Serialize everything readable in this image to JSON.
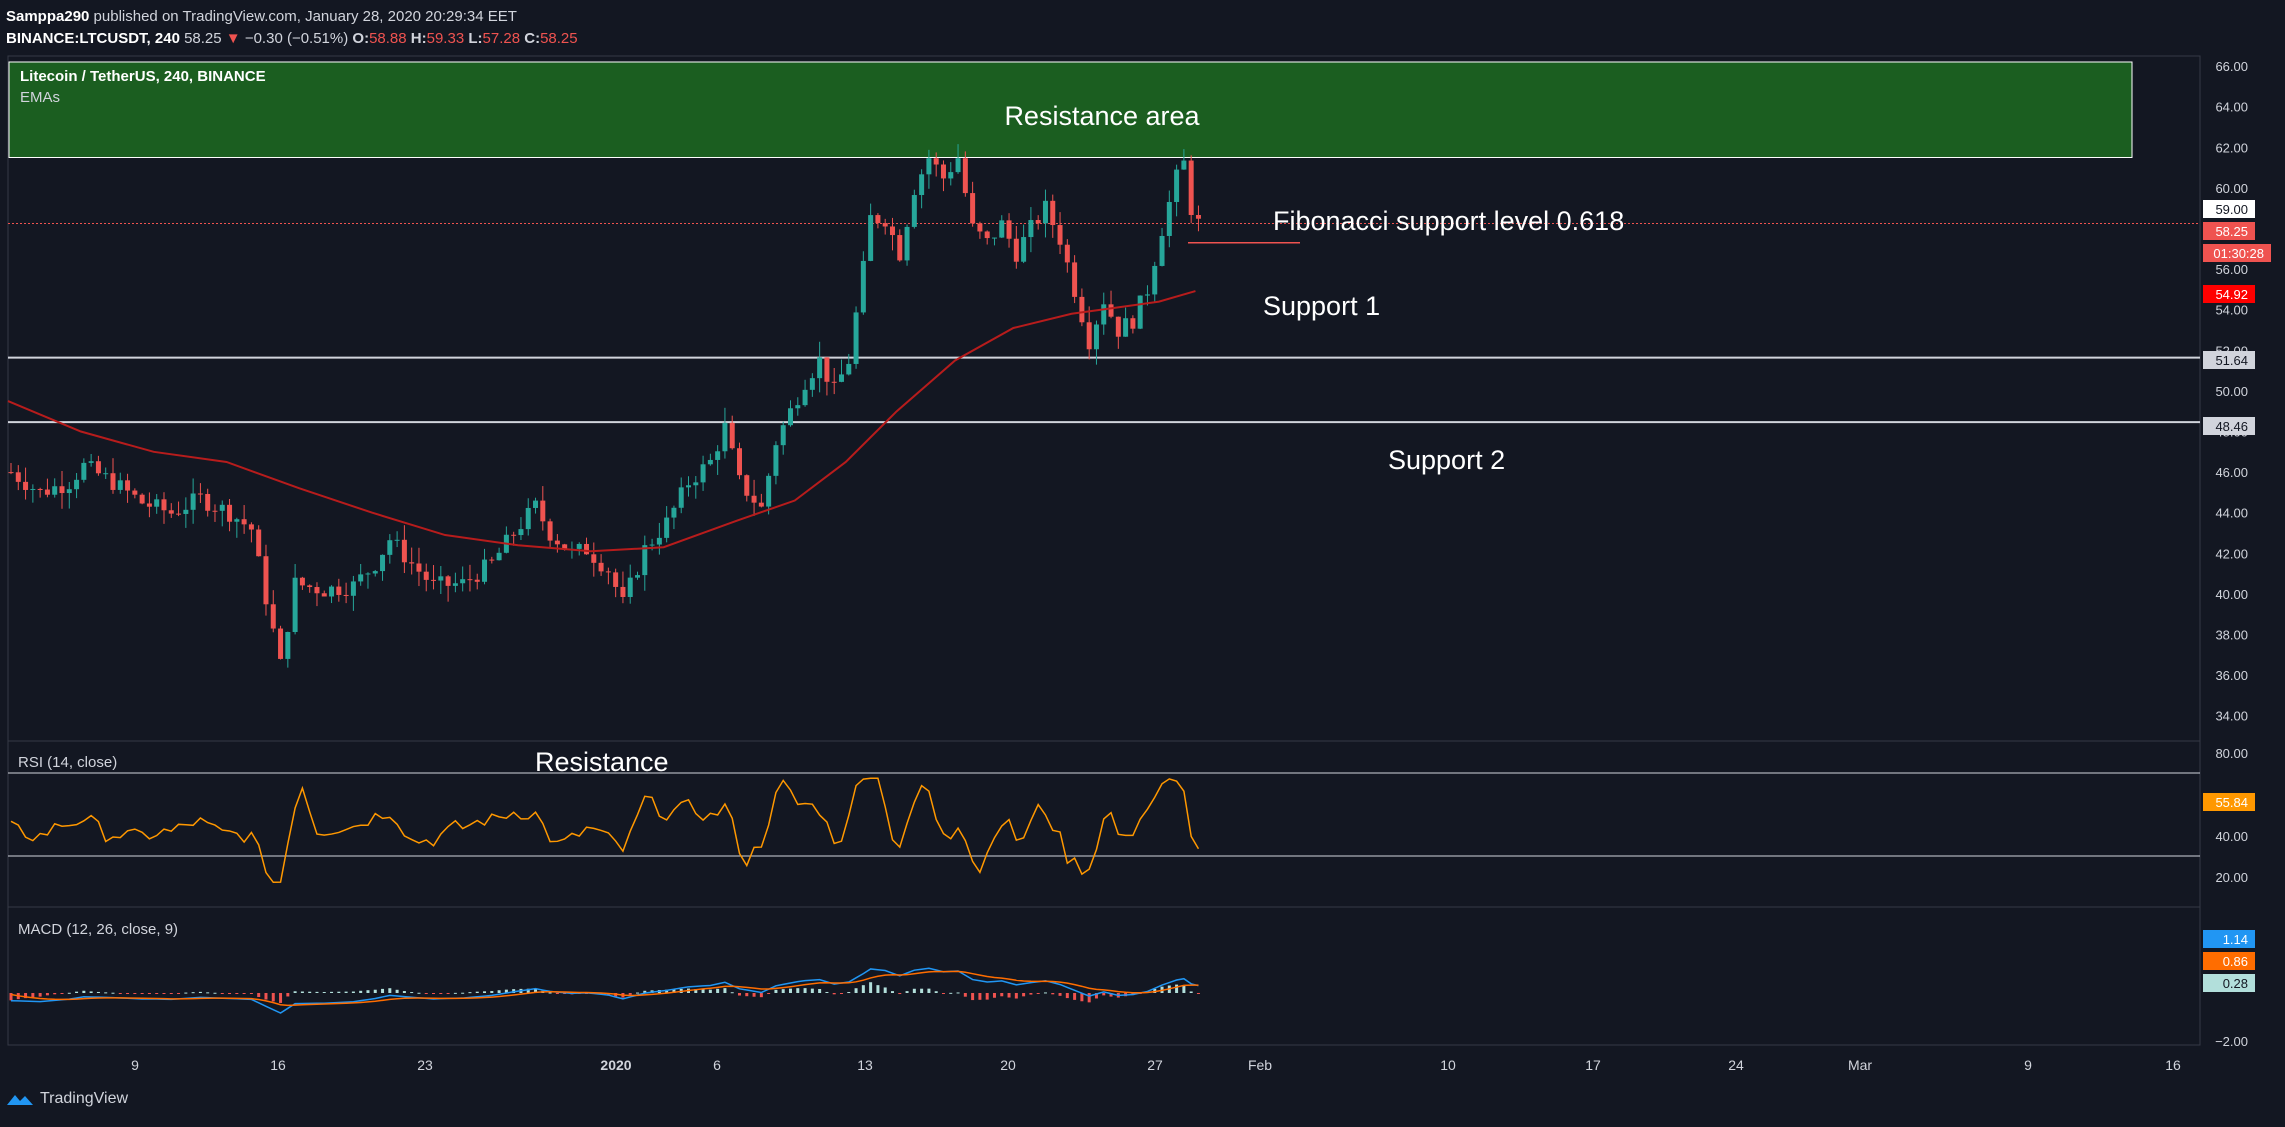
{
  "header": {
    "publisher": "Samppa290",
    "publisher_suffix": " published on TradingView.com, January 28, 2020 20:29:34 EET",
    "symbol": "BINANCE:LTCUSDT, 240",
    "last": "58.25",
    "change": "−0.30 (−0.51%)",
    "open_label": "O:",
    "open": "58.88",
    "high_label": "H:",
    "high": "59.33",
    "low_label": "L:",
    "low": "57.28",
    "close_label": "C:",
    "close": "58.25"
  },
  "legend": {
    "title": "Litecoin / TetherUS, 240, BINANCE",
    "emas": "EMAs"
  },
  "annotations": {
    "resistance_area": "Resistance area",
    "fib": "Fibonacci support level 0.618",
    "support1": "Support 1",
    "support2": "Support 2",
    "rsi_resistance": "Resistance"
  },
  "price_badges": {
    "current": "59.00",
    "last": "58.25",
    "timer": "01:30:28",
    "ema": "54.92",
    "s1": "51.64",
    "s2": "48.46"
  },
  "rsi": {
    "label": "RSI (14, close)",
    "value": "55.84",
    "ticks": [
      "80.00",
      "40.00",
      "20.00"
    ]
  },
  "macd": {
    "label": "MACD (12, 26, close, 9)",
    "values": [
      "1.14",
      "0.86",
      "0.28"
    ],
    "bottom_tick": "−2.00"
  },
  "footer": {
    "brand": "TradingView"
  },
  "colors": {
    "bg": "#131722",
    "up": "#26a69a",
    "down": "#ef5350",
    "ema": "#b71c1c",
    "rsi": "#ff9800",
    "macd": "#2196f3",
    "signal": "#ff6d00",
    "zone": "#1b5e20"
  },
  "chart_data": {
    "type": "candlestick",
    "title": "Litecoin / TetherUS, 240, BINANCE",
    "ylim": [
      33,
      66.5
    ],
    "y_ticks": [
      34,
      36,
      38,
      40,
      42,
      44,
      46,
      48,
      50,
      52,
      54,
      56,
      58,
      60,
      62,
      64,
      66
    ],
    "x_ticks": [
      "9",
      "16",
      "23",
      "2020",
      "6",
      "13",
      "20",
      "27",
      "Feb",
      "10",
      "17",
      "24",
      "Mar",
      "9",
      "16"
    ],
    "resistance_area": [
      61.5,
      66.5
    ],
    "support_1": 51.64,
    "support_2": 48.46,
    "fib_0618": 57.3,
    "current_price_line": 58.25,
    "price_path": [
      [
        0,
        46.0
      ],
      [
        4,
        45.0
      ],
      [
        8,
        45.5
      ],
      [
        10,
        46.3
      ],
      [
        14,
        45.5
      ],
      [
        18,
        44.5
      ],
      [
        22,
        44.0
      ],
      [
        26,
        44.7
      ],
      [
        30,
        44.0
      ],
      [
        33,
        43.2
      ],
      [
        35,
        39.8
      ],
      [
        37,
        36.5
      ],
      [
        39,
        40.5
      ],
      [
        43,
        40.2
      ],
      [
        47,
        40.4
      ],
      [
        50,
        41.5
      ],
      [
        52,
        42.7
      ],
      [
        55,
        41.5
      ],
      [
        58,
        40.4
      ],
      [
        62,
        40.5
      ],
      [
        66,
        41.5
      ],
      [
        69,
        43.0
      ],
      [
        72,
        44.3
      ],
      [
        74,
        43.0
      ],
      [
        77,
        42.0
      ],
      [
        79,
        42.2
      ],
      [
        82,
        41.2
      ],
      [
        84,
        39.5
      ],
      [
        87,
        42.2
      ],
      [
        90,
        43.5
      ],
      [
        93,
        45.5
      ],
      [
        96,
        46.5
      ],
      [
        98,
        48.2
      ],
      [
        100,
        45.5
      ],
      [
        103,
        44.2
      ],
      [
        105,
        47.5
      ],
      [
        107,
        49.0
      ],
      [
        109,
        50.5
      ],
      [
        111,
        51.5
      ],
      [
        113,
        50.0
      ],
      [
        115,
        51.5
      ],
      [
        117,
        56.0
      ],
      [
        118,
        58.5
      ],
      [
        120,
        58.5
      ],
      [
        122,
        56.8
      ],
      [
        124,
        60.0
      ],
      [
        126,
        61.5
      ],
      [
        128,
        60.5
      ],
      [
        130,
        61.5
      ],
      [
        132,
        58.0
      ],
      [
        134,
        57.3
      ],
      [
        136,
        58.2
      ],
      [
        138,
        56.8
      ],
      [
        140,
        58.0
      ],
      [
        142,
        59.0
      ],
      [
        144,
        57.5
      ],
      [
        146,
        55.0
      ],
      [
        148,
        52.5
      ],
      [
        150,
        54.5
      ],
      [
        152,
        53.0
      ],
      [
        154,
        53.5
      ],
      [
        156,
        55.0
      ],
      [
        158,
        58.0
      ],
      [
        160,
        60.5
      ],
      [
        161,
        61.2
      ],
      [
        162,
        59.0
      ],
      [
        163,
        58.25
      ]
    ],
    "ema_path": [
      [
        0,
        49.5
      ],
      [
        10,
        48.0
      ],
      [
        20,
        47.0
      ],
      [
        30,
        46.5
      ],
      [
        40,
        45.2
      ],
      [
        50,
        44.0
      ],
      [
        60,
        42.9
      ],
      [
        70,
        42.4
      ],
      [
        80,
        42.1
      ],
      [
        90,
        42.3
      ],
      [
        100,
        43.6
      ],
      [
        108,
        44.6
      ],
      [
        115,
        46.5
      ],
      [
        122,
        49.0
      ],
      [
        130,
        51.5
      ],
      [
        138,
        53.1
      ],
      [
        146,
        53.8
      ],
      [
        152,
        54.1
      ],
      [
        158,
        54.4
      ],
      [
        163,
        54.92
      ]
    ]
  }
}
